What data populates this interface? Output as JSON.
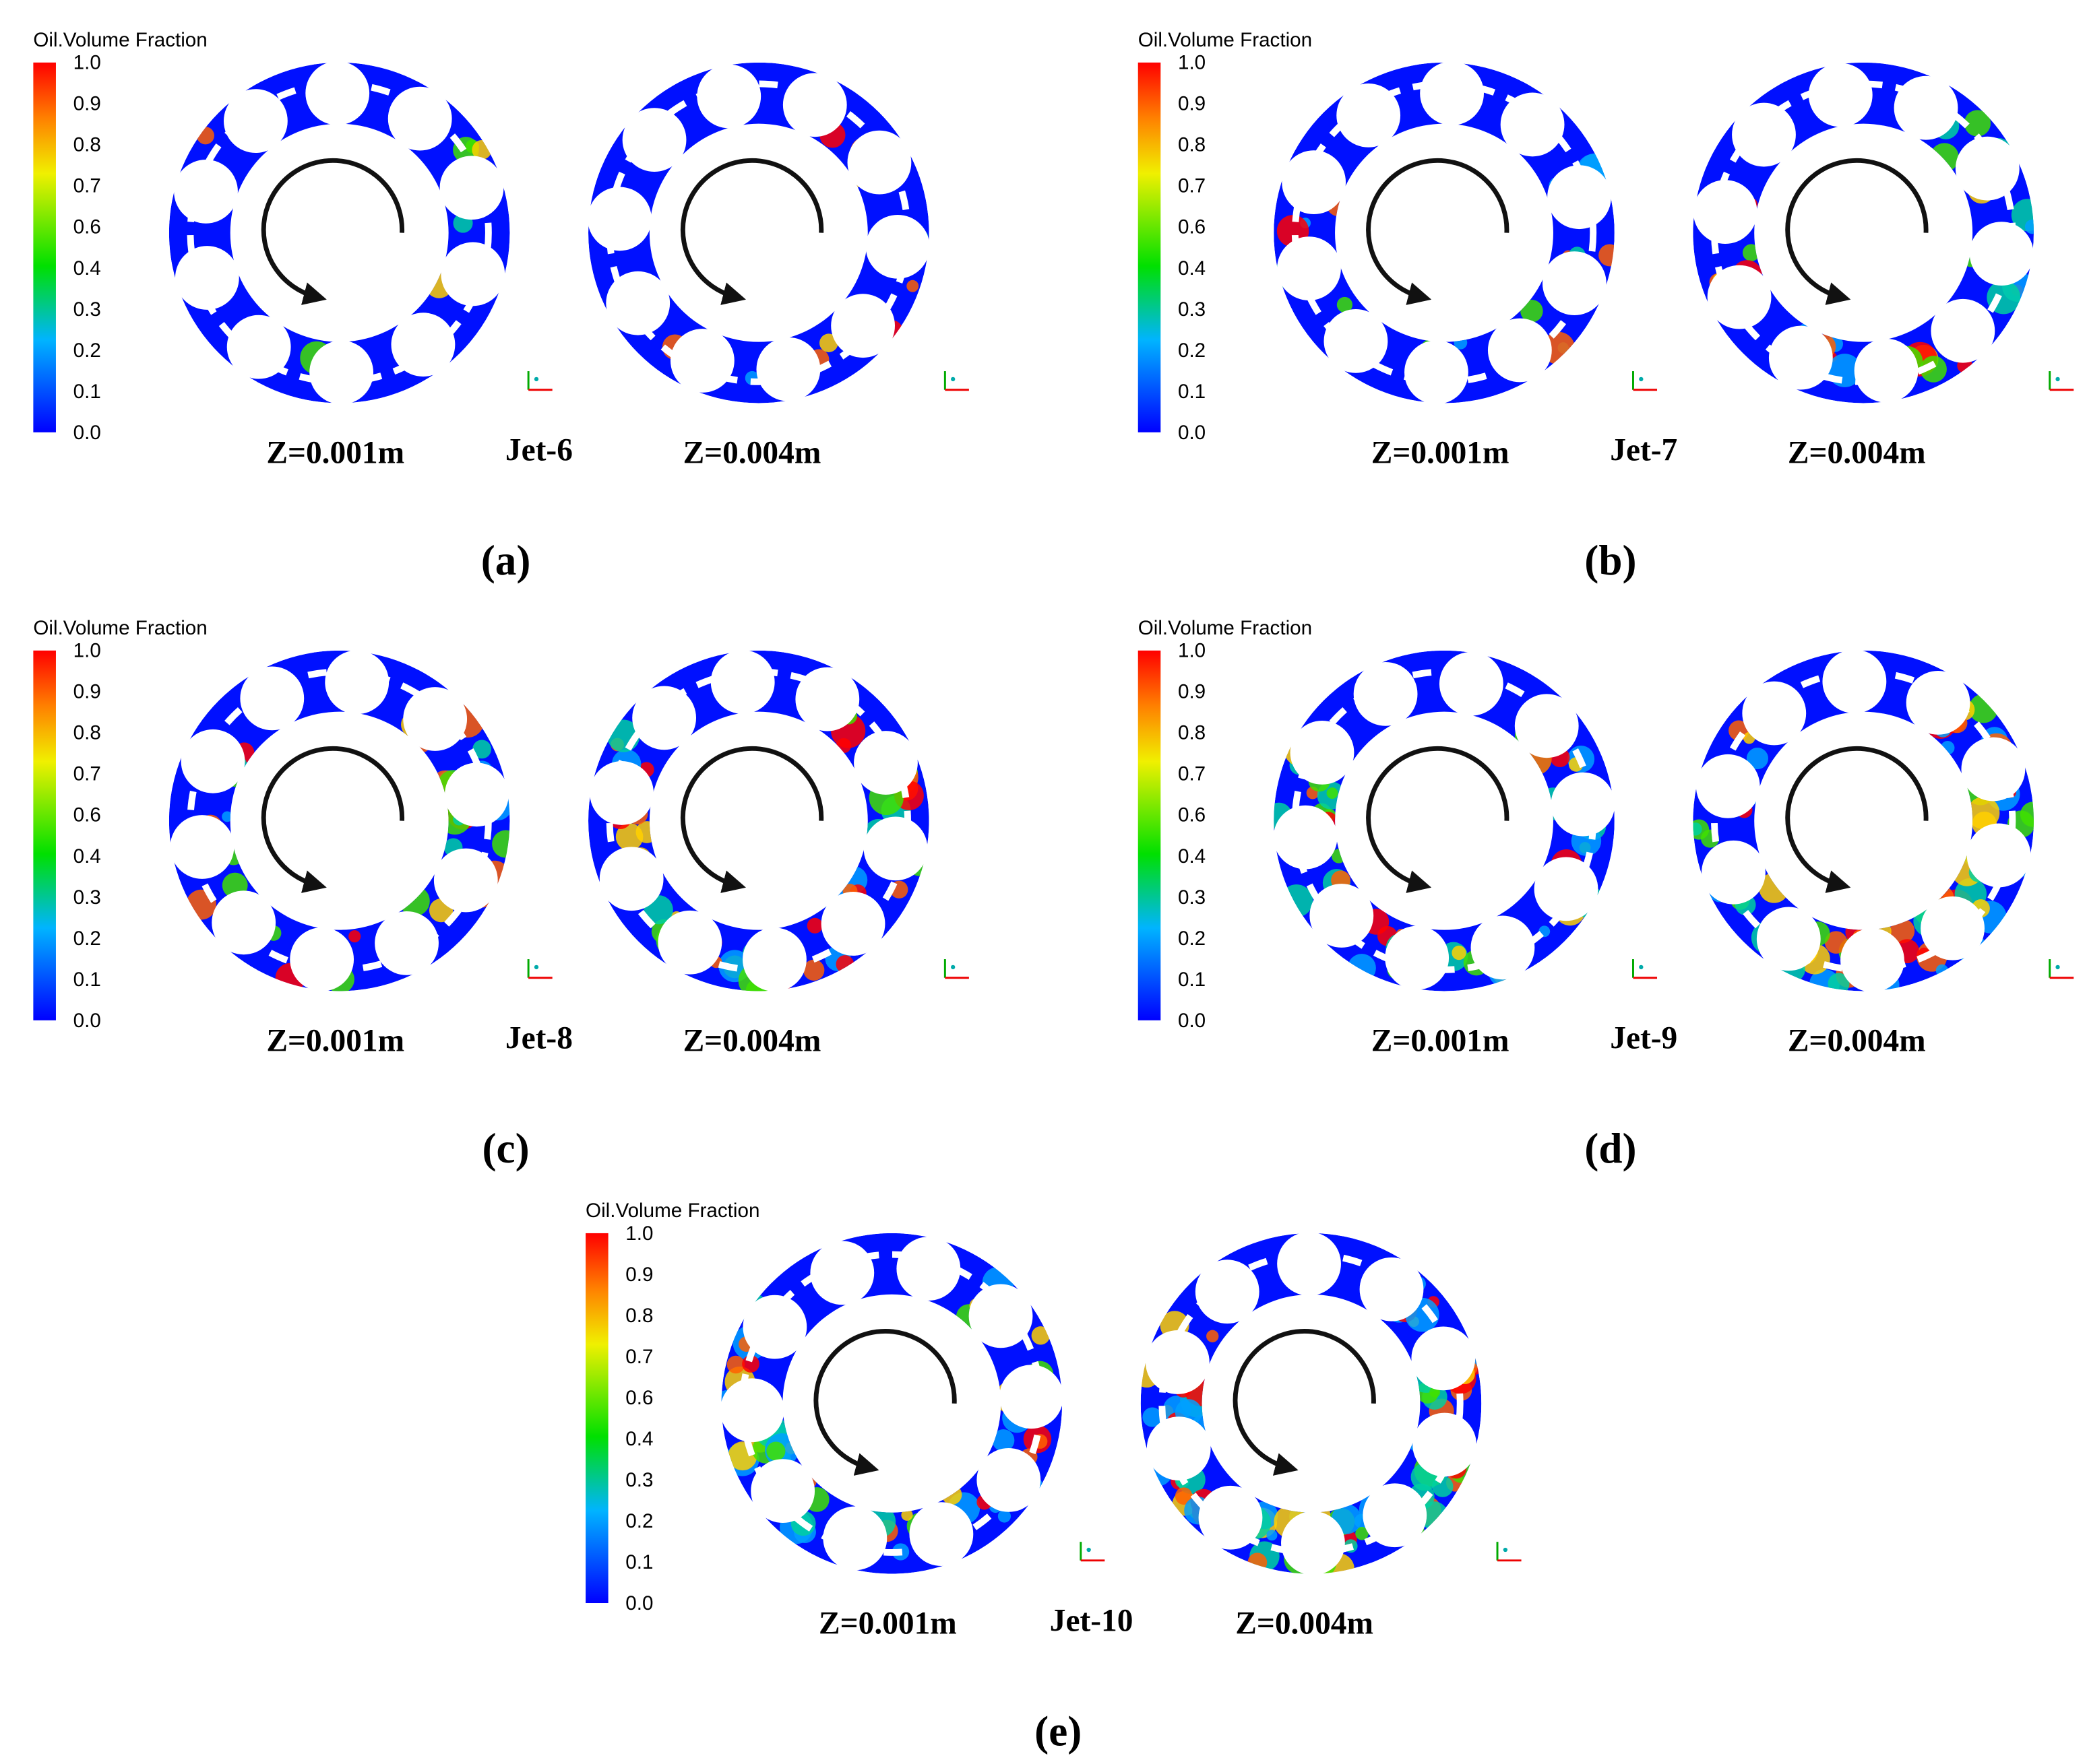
{
  "panels": [
    {
      "legend": {
        "title": "Oil.Volume Fraction",
        "ticks": [
          "1.0",
          "0.9",
          "0.8",
          "0.7",
          "0.6",
          "0.4",
          "0.3",
          "0.2",
          "0.1",
          "0.0"
        ]
      },
      "left_label": "Z=0.001m",
      "jet_label": "Jet-6",
      "right_label": "Z=0.004m",
      "caption": "(a)"
    },
    {
      "legend": {
        "title": "Oil.Volume Fraction",
        "ticks": [
          "1.0",
          "0.9",
          "0.8",
          "0.7",
          "0.6",
          "0.4",
          "0.3",
          "0.2",
          "0.1",
          "0.0"
        ]
      },
      "left_label": "Z=0.001m",
      "jet_label": "Jet-7",
      "right_label": "Z=0.004m",
      "caption": "(b)"
    },
    {
      "legend": {
        "title": "Oil.Volume Fraction",
        "ticks": [
          "1.0",
          "0.9",
          "0.8",
          "0.7",
          "0.6",
          "0.4",
          "0.3",
          "0.2",
          "0.1",
          "0.0"
        ]
      },
      "left_label": "Z=0.001m",
      "jet_label": "Jet-8",
      "right_label": "Z=0.004m",
      "caption": "(c)"
    },
    {
      "legend": {
        "title": "Oil.Volume Fraction",
        "ticks": [
          "1.0",
          "0.9",
          "0.8",
          "0.7",
          "0.6",
          "0.4",
          "0.3",
          "0.2",
          "0.1",
          "0.0"
        ]
      },
      "left_label": "Z=0.001m",
      "jet_label": "Jet-9",
      "right_label": "Z=0.004m",
      "caption": "(d)"
    },
    {
      "legend": {
        "title": "Oil.Volume Fraction",
        "ticks": [
          "1.0",
          "0.9",
          "0.8",
          "0.7",
          "0.6",
          "0.4",
          "0.3",
          "0.2",
          "0.1",
          "0.0"
        ]
      },
      "left_label": "Z=0.001m",
      "jet_label": "Jet-10",
      "right_label": "Z=0.004m",
      "caption": "(e)"
    }
  ]
}
